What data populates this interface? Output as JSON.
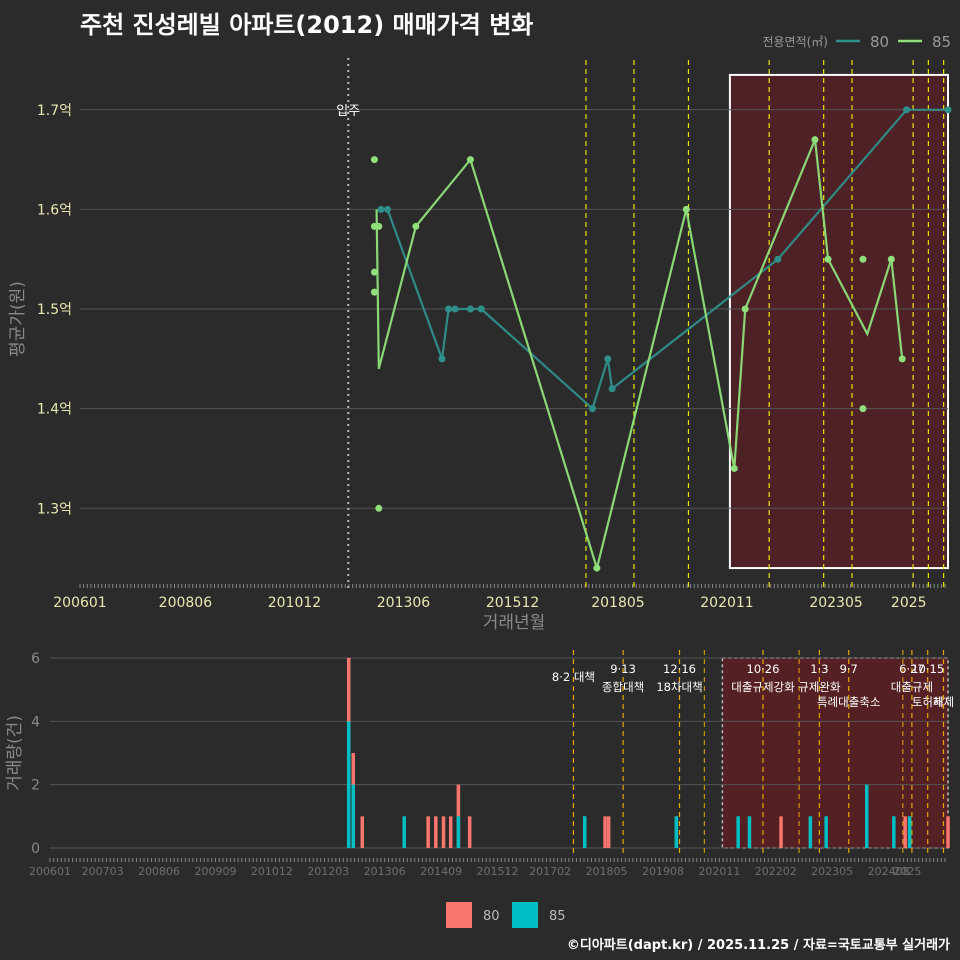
{
  "title": "주천 진성레빌 아파트(2012) 매매가격 변화",
  "footer": "©디아파트(dapt.kr) / 2025.11.25 / 자료=국토교통부 실거래가",
  "colors": {
    "background": "#2b2b2b",
    "series_80": "#2f8f8a",
    "series_85": "#8fe07a",
    "bar_80": "#f8766d",
    "bar_85": "#00bfc4",
    "policy_line": "#e6e600",
    "policy_line_bottom": "#e6a800",
    "highlight_fill": "#5a1f24",
    "grid": "#555555",
    "tick_label": "#e8e8b0"
  },
  "chart_data": [
    {
      "type": "line",
      "title": "주천 진성레빌 아파트(2012) 매매가격 변화",
      "xlabel": "거래년월",
      "ylabel": "평균가(원)",
      "x_ticks": [
        "200601",
        "200806",
        "201012",
        "201306",
        "201512",
        "201805",
        "202011",
        "202305",
        "2025"
      ],
      "y_ticks": [
        {
          "value": 1.3,
          "label": "1.3억"
        },
        {
          "value": 1.4,
          "label": "1.4억"
        },
        {
          "value": 1.5,
          "label": "1.5억"
        },
        {
          "value": 1.6,
          "label": "1.6억"
        },
        {
          "value": 1.7,
          "label": "1.7억"
        }
      ],
      "x_range": [
        2006.0,
        2025.9
      ],
      "ylim": [
        1.22,
        1.76
      ],
      "legend_title": "전용면적(㎡)",
      "legend_position": "top-right",
      "move_in": {
        "label": "입주",
        "x": 2012.15
      },
      "highlight_region": {
        "x_start": 2020.9,
        "x_end": 2025.9,
        "y_low": 1.24,
        "y_high": 1.735
      },
      "policy_lines": [
        2017.6,
        2018.7,
        2019.95,
        2021.8,
        2023.05,
        2023.7,
        2025.1,
        2025.45,
        2025.8
      ],
      "series": [
        {
          "name": "80",
          "color": "#2f8f8a",
          "line": [
            [
              2012.9,
              1.6
            ],
            [
              2013.05,
              1.6
            ],
            [
              2014.3,
              1.45
            ],
            [
              2014.45,
              1.5
            ],
            [
              2014.6,
              1.5
            ],
            [
              2014.95,
              1.5
            ],
            [
              2015.2,
              1.5
            ],
            [
              2017.75,
              1.4
            ],
            [
              2018.1,
              1.45
            ],
            [
              2018.2,
              1.42
            ],
            [
              2022.0,
              1.55
            ],
            [
              2024.95,
              1.7
            ],
            [
              2025.9,
              1.7
            ]
          ],
          "points": [
            [
              2012.9,
              1.6
            ],
            [
              2013.05,
              1.6
            ],
            [
              2014.3,
              1.45
            ],
            [
              2014.45,
              1.5
            ],
            [
              2014.6,
              1.5
            ],
            [
              2014.95,
              1.5
            ],
            [
              2015.2,
              1.5
            ],
            [
              2017.75,
              1.4
            ],
            [
              2018.1,
              1.45
            ],
            [
              2018.2,
              1.42
            ],
            [
              2022.0,
              1.55
            ],
            [
              2024.95,
              1.7
            ],
            [
              2025.9,
              1.7
            ]
          ]
        },
        {
          "name": "85",
          "color": "#8fe07a",
          "line": [
            [
              2012.8,
              1.6
            ],
            [
              2012.85,
              1.44
            ],
            [
              2013.7,
              1.583
            ],
            [
              2014.95,
              1.65
            ],
            [
              2017.85,
              1.24
            ],
            [
              2019.9,
              1.6
            ],
            [
              2021.0,
              1.34
            ],
            [
              2021.25,
              1.5
            ],
            [
              2022.85,
              1.67
            ],
            [
              2023.15,
              1.55
            ],
            [
              2024.05,
              1.475
            ],
            [
              2024.6,
              1.55
            ],
            [
              2024.85,
              1.45
            ]
          ],
          "points": [
            [
              2012.75,
              1.65
            ],
            [
              2012.75,
              1.583
            ],
            [
              2012.85,
              1.583
            ],
            [
              2012.75,
              1.537
            ],
            [
              2012.75,
              1.517
            ],
            [
              2012.85,
              1.3
            ],
            [
              2013.7,
              1.583
            ],
            [
              2014.95,
              1.65
            ],
            [
              2017.85,
              1.24
            ],
            [
              2019.9,
              1.6
            ],
            [
              2021.0,
              1.34
            ],
            [
              2021.25,
              1.5
            ],
            [
              2022.85,
              1.67
            ],
            [
              2023.15,
              1.55
            ],
            [
              2023.95,
              1.55
            ],
            [
              2023.95,
              1.4
            ],
            [
              2024.6,
              1.55
            ],
            [
              2024.85,
              1.45
            ]
          ]
        }
      ]
    },
    {
      "type": "bar",
      "ylabel": "거래량(건)",
      "x_ticks": [
        "200601",
        "200703",
        "200806",
        "200909",
        "201012",
        "201203",
        "201306",
        "201409",
        "201512",
        "201702",
        "201805",
        "201908",
        "202011",
        "202202",
        "202305",
        "202408",
        "2025"
      ],
      "y_ticks": [
        0,
        2,
        4,
        6
      ],
      "ylim": [
        0,
        6
      ],
      "legend": [
        "80",
        "85"
      ],
      "legend_position": "bottom",
      "highlight_region": {
        "x_start": 2020.9,
        "x_end": 2025.9
      },
      "policy_annotations": [
        {
          "x": 2017.6,
          "date": "",
          "label": "8·2 대책",
          "row": 1
        },
        {
          "x": 2018.7,
          "date": "9·13",
          "label": "종합대책",
          "row": 0
        },
        {
          "x": 2019.95,
          "date": "12·16",
          "label": "18차대책",
          "row": 0
        },
        {
          "x": 2021.8,
          "date": "10·26",
          "label": "대출규제강화",
          "row": 0
        },
        {
          "x": 2023.05,
          "date": "1·3",
          "label": "규제완화",
          "row": 0
        },
        {
          "x": 2023.7,
          "date": "9·7",
          "label": "특례대출축소",
          "row": 1
        },
        {
          "x": 2025.1,
          "date": "6·27",
          "label": "대출규제",
          "row": 0
        },
        {
          "x": 2025.45,
          "date": "10·15",
          "label": "토허제",
          "row": 1
        },
        {
          "x": 2025.8,
          "date": "",
          "label": "해제",
          "row": 1
        }
      ],
      "extra_policy_lines": [
        2020.5,
        2022.6,
        2024.9
      ],
      "bars": [
        {
          "x": 2012.62,
          "v80": 6,
          "v85": 4
        },
        {
          "x": 2012.72,
          "v80": 3,
          "v85": 2
        },
        {
          "x": 2012.92,
          "v80": 1,
          "v85": 0
        },
        {
          "x": 2013.85,
          "v80": 0,
          "v85": 1
        },
        {
          "x": 2014.38,
          "v80": 1,
          "v85": 0
        },
        {
          "x": 2014.55,
          "v80": 1,
          "v85": 0
        },
        {
          "x": 2014.72,
          "v80": 1,
          "v85": 0
        },
        {
          "x": 2014.88,
          "v80": 1,
          "v85": 0
        },
        {
          "x": 2015.05,
          "v80": 2,
          "v85": 1
        },
        {
          "x": 2015.3,
          "v80": 1,
          "v85": 0
        },
        {
          "x": 2017.85,
          "v80": 1,
          "v85": 1
        },
        {
          "x": 2018.3,
          "v80": 1,
          "v85": 0
        },
        {
          "x": 2018.38,
          "v80": 1,
          "v85": 0
        },
        {
          "x": 2019.88,
          "v80": 1,
          "v85": 1
        },
        {
          "x": 2021.25,
          "v80": 0,
          "v85": 1
        },
        {
          "x": 2021.5,
          "v80": 0,
          "v85": 1
        },
        {
          "x": 2022.2,
          "v80": 1,
          "v85": 0
        },
        {
          "x": 2022.85,
          "v80": 0,
          "v85": 1
        },
        {
          "x": 2023.2,
          "v80": 0,
          "v85": 1
        },
        {
          "x": 2024.1,
          "v80": 0,
          "v85": 2
        },
        {
          "x": 2024.7,
          "v80": 0,
          "v85": 1
        },
        {
          "x": 2024.95,
          "v80": 1,
          "v85": 0
        },
        {
          "x": 2025.05,
          "v80": 1,
          "v85": 1
        },
        {
          "x": 2025.9,
          "v80": 1,
          "v85": 0
        }
      ]
    }
  ]
}
